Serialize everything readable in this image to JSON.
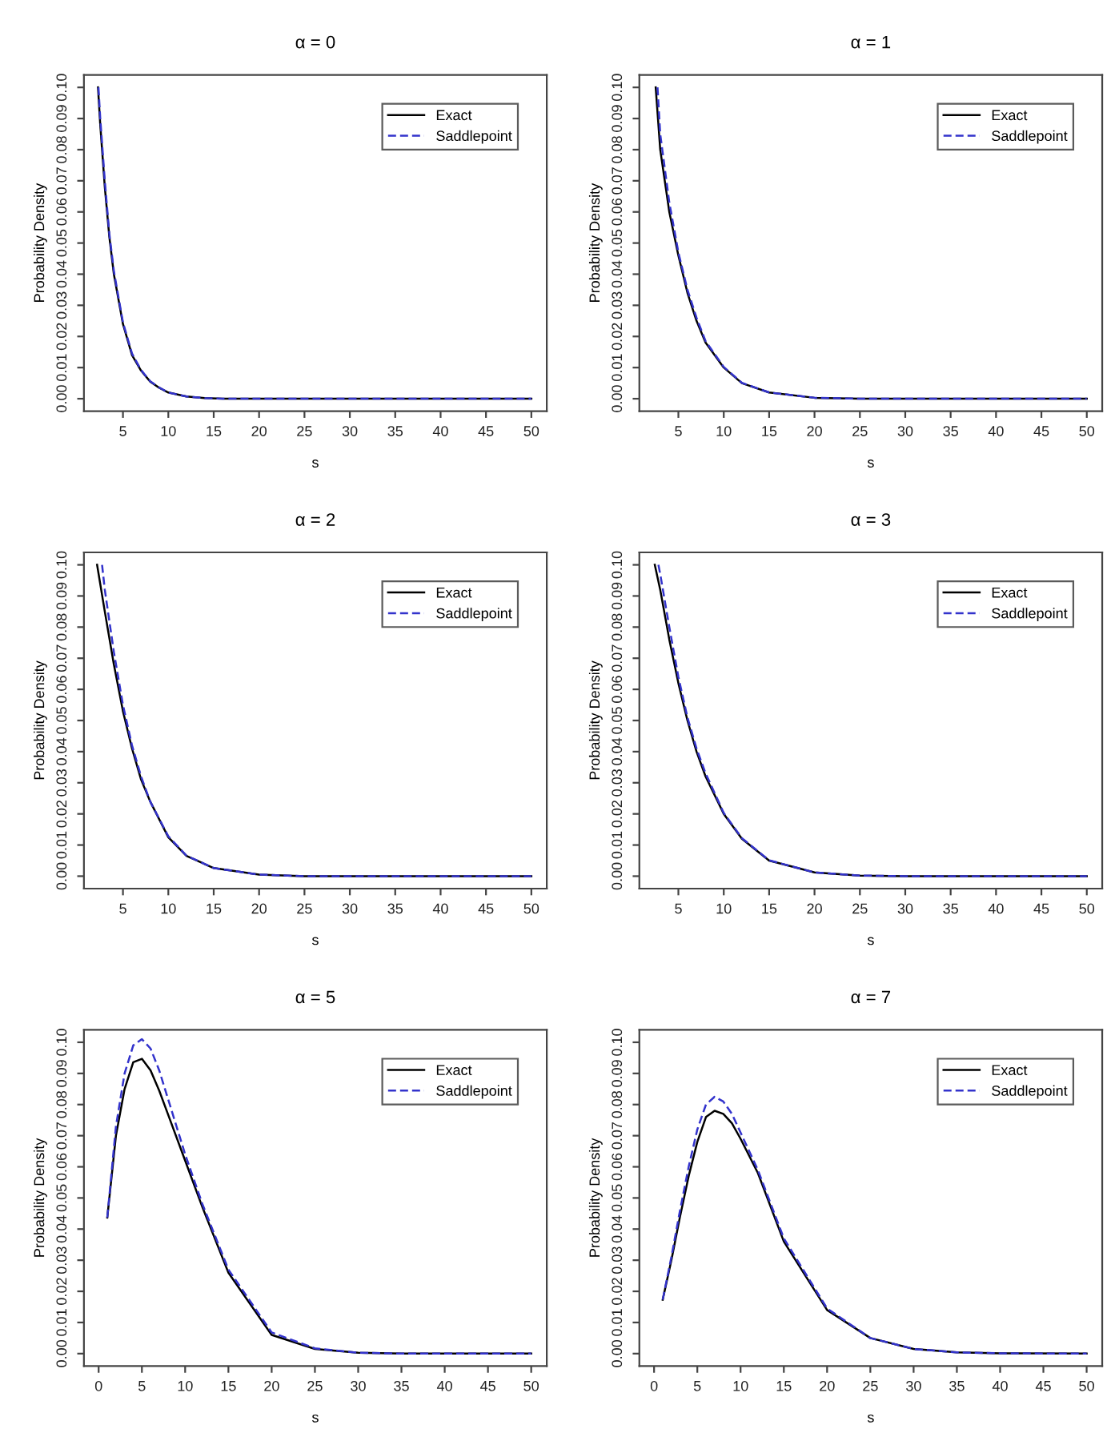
{
  "chart_data": [
    {
      "type": "line",
      "title": "α = 0",
      "xlabel": "s",
      "ylabel": "Probability Density",
      "xlim": [
        0.7,
        51.7
      ],
      "ylim": [
        -0.004,
        0.104
      ],
      "xticks": [
        5,
        10,
        15,
        20,
        25,
        30,
        35,
        40,
        45,
        50
      ],
      "yticks": [
        {
          "value": 0,
          "label": "0.00"
        },
        {
          "value": 0.01,
          "label": "0.01"
        },
        {
          "value": 0.02,
          "label": "0.02"
        },
        {
          "value": 0.03,
          "label": "0.03"
        },
        {
          "value": 0.04,
          "label": "0.04"
        },
        {
          "value": 0.05,
          "label": "0.05"
        },
        {
          "value": 0.06,
          "label": "0.06"
        },
        {
          "value": 0.07,
          "label": "0.07"
        },
        {
          "value": 0.08,
          "label": "0.08"
        },
        {
          "value": 0.09,
          "label": "0.09"
        },
        {
          "value": 0.1,
          "label": "0.10"
        }
      ],
      "legend": "top right",
      "grid": false,
      "series": [
        {
          "name": "Exact",
          "color": "#000000",
          "line_style": "solid",
          "x": [
            2.25,
            2.5,
            3,
            3.5,
            4,
            5,
            6,
            7,
            8,
            9,
            10,
            12,
            14,
            16,
            20,
            30,
            40,
            50
          ],
          "values": [
            0.1,
            0.088,
            0.068,
            0.052,
            0.04,
            0.024,
            0.014,
            0.009,
            0.0055,
            0.0035,
            0.002,
            0.0007,
            0.0002,
            0,
            0,
            0,
            0,
            0
          ]
        },
        {
          "name": "Saddlepoint",
          "color": "#3333cc",
          "line_style": "dashed",
          "x": [
            2.3,
            2.5,
            3,
            3.5,
            4,
            5,
            6,
            7,
            8,
            9,
            10,
            12,
            14,
            16,
            20,
            30,
            40,
            50
          ],
          "values": [
            0.1,
            0.09,
            0.07,
            0.053,
            0.041,
            0.0245,
            0.0145,
            0.0092,
            0.0056,
            0.0036,
            0.002,
            0.0007,
            0.0002,
            0,
            0,
            0,
            0,
            0
          ]
        }
      ]
    },
    {
      "type": "line",
      "title": "α = 1",
      "xlabel": "s",
      "ylabel": "Probability Density",
      "xlim": [
        0.7,
        51.7
      ],
      "ylim": [
        -0.004,
        0.104
      ],
      "xticks": [
        5,
        10,
        15,
        20,
        25,
        30,
        35,
        40,
        45,
        50
      ],
      "yticks": [
        {
          "value": 0,
          "label": "0.00"
        },
        {
          "value": 0.01,
          "label": "0.01"
        },
        {
          "value": 0.02,
          "label": "0.02"
        },
        {
          "value": 0.03,
          "label": "0.03"
        },
        {
          "value": 0.04,
          "label": "0.04"
        },
        {
          "value": 0.05,
          "label": "0.05"
        },
        {
          "value": 0.06,
          "label": "0.06"
        },
        {
          "value": 0.07,
          "label": "0.07"
        },
        {
          "value": 0.08,
          "label": "0.08"
        },
        {
          "value": 0.09,
          "label": "0.09"
        },
        {
          "value": 0.1,
          "label": "0.10"
        }
      ],
      "legend": "top right",
      "grid": false,
      "series": [
        {
          "name": "Exact",
          "color": "#000000",
          "line_style": "solid",
          "x": [
            2.5,
            3,
            4,
            5,
            6,
            7,
            8,
            10,
            12,
            15,
            20,
            25,
            50
          ],
          "values": [
            0.1,
            0.08,
            0.06,
            0.046,
            0.034,
            0.025,
            0.018,
            0.01,
            0.005,
            0.002,
            0.0003,
            0,
            0
          ]
        },
        {
          "name": "Saddlepoint",
          "color": "#3333cc",
          "line_style": "dashed",
          "x": [
            2.7,
            3,
            4,
            5,
            6,
            7,
            8,
            10,
            12,
            15,
            20,
            25,
            50
          ],
          "values": [
            0.1,
            0.085,
            0.063,
            0.047,
            0.035,
            0.026,
            0.0185,
            0.0102,
            0.0051,
            0.002,
            0.0003,
            0,
            0
          ]
        }
      ]
    },
    {
      "type": "line",
      "title": "α = 2",
      "xlabel": "s",
      "ylabel": "Probability Density",
      "xlim": [
        0.7,
        51.7
      ],
      "ylim": [
        -0.004,
        0.104
      ],
      "xticks": [
        5,
        10,
        15,
        20,
        25,
        30,
        35,
        40,
        45,
        50
      ],
      "yticks": [
        {
          "value": 0,
          "label": "0.00"
        },
        {
          "value": 0.01,
          "label": "0.01"
        },
        {
          "value": 0.02,
          "label": "0.02"
        },
        {
          "value": 0.03,
          "label": "0.03"
        },
        {
          "value": 0.04,
          "label": "0.04"
        },
        {
          "value": 0.05,
          "label": "0.05"
        },
        {
          "value": 0.06,
          "label": "0.06"
        },
        {
          "value": 0.07,
          "label": "0.07"
        },
        {
          "value": 0.08,
          "label": "0.08"
        },
        {
          "value": 0.09,
          "label": "0.09"
        },
        {
          "value": 0.1,
          "label": "0.10"
        }
      ],
      "legend": "top right",
      "grid": false,
      "series": [
        {
          "name": "Exact",
          "color": "#000000",
          "line_style": "solid",
          "x": [
            2.15,
            3,
            4,
            5,
            6,
            7,
            8,
            10,
            12,
            15,
            20,
            25,
            50
          ],
          "values": [
            0.1,
            0.085,
            0.068,
            0.053,
            0.041,
            0.031,
            0.024,
            0.0125,
            0.0065,
            0.0026,
            0.0005,
            0,
            0
          ]
        },
        {
          "name": "Saddlepoint",
          "color": "#3333cc",
          "line_style": "dashed",
          "x": [
            2.7,
            3,
            4,
            5,
            6,
            7,
            8,
            10,
            12,
            15,
            20,
            25,
            50
          ],
          "values": [
            0.1,
            0.092,
            0.072,
            0.055,
            0.042,
            0.032,
            0.024,
            0.0128,
            0.0066,
            0.0026,
            0.0005,
            0,
            0
          ]
        }
      ]
    },
    {
      "type": "line",
      "title": "α = 3",
      "xlabel": "s",
      "ylabel": "Probability Density",
      "xlim": [
        0.7,
        51.7
      ],
      "ylim": [
        -0.004,
        0.104
      ],
      "xticks": [
        5,
        10,
        15,
        20,
        25,
        30,
        35,
        40,
        45,
        50
      ],
      "yticks": [
        {
          "value": 0,
          "label": "0.00"
        },
        {
          "value": 0.01,
          "label": "0.01"
        },
        {
          "value": 0.02,
          "label": "0.02"
        },
        {
          "value": 0.03,
          "label": "0.03"
        },
        {
          "value": 0.04,
          "label": "0.04"
        },
        {
          "value": 0.05,
          "label": "0.05"
        },
        {
          "value": 0.06,
          "label": "0.06"
        },
        {
          "value": 0.07,
          "label": "0.07"
        },
        {
          "value": 0.08,
          "label": "0.08"
        },
        {
          "value": 0.09,
          "label": "0.09"
        },
        {
          "value": 0.1,
          "label": "0.10"
        }
      ],
      "legend": "top right",
      "grid": false,
      "series": [
        {
          "name": "Exact",
          "color": "#000000",
          "line_style": "solid",
          "x": [
            2.4,
            3,
            4,
            5,
            6,
            7,
            8,
            10,
            12,
            15,
            20,
            25,
            30,
            50
          ],
          "values": [
            0.1,
            0.092,
            0.076,
            0.062,
            0.05,
            0.04,
            0.032,
            0.02,
            0.012,
            0.005,
            0.0012,
            0.0002,
            0,
            0
          ]
        },
        {
          "name": "Saddlepoint",
          "color": "#3333cc",
          "line_style": "dashed",
          "x": [
            2.8,
            3,
            4,
            5,
            6,
            7,
            8,
            10,
            12,
            15,
            20,
            25,
            30,
            50
          ],
          "values": [
            0.1,
            0.097,
            0.08,
            0.064,
            0.051,
            0.041,
            0.033,
            0.0203,
            0.0122,
            0.0051,
            0.0012,
            0.0002,
            0,
            0
          ]
        }
      ]
    },
    {
      "type": "line",
      "title": "α = 5",
      "xlabel": "s",
      "ylabel": "Probability Density",
      "xlim": [
        -1.7,
        51.8
      ],
      "ylim": [
        -0.004,
        0.104
      ],
      "xticks": [
        0,
        5,
        10,
        15,
        20,
        25,
        30,
        35,
        40,
        45,
        50
      ],
      "yticks": [
        {
          "value": 0,
          "label": "0.00"
        },
        {
          "value": 0.01,
          "label": "0.01"
        },
        {
          "value": 0.02,
          "label": "0.02"
        },
        {
          "value": 0.03,
          "label": "0.03"
        },
        {
          "value": 0.04,
          "label": "0.04"
        },
        {
          "value": 0.05,
          "label": "0.05"
        },
        {
          "value": 0.06,
          "label": "0.06"
        },
        {
          "value": 0.07,
          "label": "0.07"
        },
        {
          "value": 0.08,
          "label": "0.08"
        },
        {
          "value": 0.09,
          "label": "0.09"
        },
        {
          "value": 0.1,
          "label": "0.10"
        }
      ],
      "legend": "top right",
      "grid": false,
      "series": [
        {
          "name": "Exact",
          "color": "#000000",
          "line_style": "solid",
          "x": [
            1,
            2,
            3,
            4,
            5,
            6,
            7,
            8,
            10,
            12,
            15,
            20,
            25,
            30,
            35,
            40,
            50
          ],
          "values": [
            0.0437,
            0.07,
            0.085,
            0.0936,
            0.0947,
            0.091,
            0.0845,
            0.077,
            0.062,
            0.047,
            0.026,
            0.006,
            0.0015,
            0.0003,
            0,
            0,
            0
          ]
        },
        {
          "name": "Saddlepoint",
          "color": "#3333cc",
          "line_style": "dashed",
          "x": [
            1,
            2,
            3,
            4,
            5,
            6,
            7,
            8,
            10,
            12,
            15,
            20,
            25,
            30,
            35,
            40,
            50
          ],
          "values": [
            0.0437,
            0.073,
            0.09,
            0.099,
            0.101,
            0.098,
            0.091,
            0.082,
            0.064,
            0.048,
            0.027,
            0.0068,
            0.0017,
            0.0003,
            0,
            0,
            0
          ]
        }
      ]
    },
    {
      "type": "line",
      "title": "α = 7",
      "xlabel": "s",
      "ylabel": "Probability Density",
      "xlim": [
        -1.7,
        51.8
      ],
      "ylim": [
        -0.004,
        0.104
      ],
      "xticks": [
        0,
        5,
        10,
        15,
        20,
        25,
        30,
        35,
        40,
        45,
        50
      ],
      "yticks": [
        {
          "value": 0,
          "label": "0.00"
        },
        {
          "value": 0.01,
          "label": "0.01"
        },
        {
          "value": 0.02,
          "label": "0.02"
        },
        {
          "value": 0.03,
          "label": "0.03"
        },
        {
          "value": 0.04,
          "label": "0.04"
        },
        {
          "value": 0.05,
          "label": "0.05"
        },
        {
          "value": 0.06,
          "label": "0.06"
        },
        {
          "value": 0.07,
          "label": "0.07"
        },
        {
          "value": 0.08,
          "label": "0.08"
        },
        {
          "value": 0.09,
          "label": "0.09"
        },
        {
          "value": 0.1,
          "label": "0.10"
        }
      ],
      "legend": "top right",
      "grid": false,
      "series": [
        {
          "name": "Exact",
          "color": "#000000",
          "line_style": "solid",
          "x": [
            1,
            2,
            3,
            4,
            5,
            6,
            7,
            8,
            9,
            10,
            12,
            15,
            20,
            25,
            30,
            35,
            40,
            50
          ],
          "values": [
            0.0173,
            0.03,
            0.044,
            0.057,
            0.068,
            0.076,
            0.078,
            0.077,
            0.074,
            0.069,
            0.058,
            0.036,
            0.014,
            0.005,
            0.0015,
            0.0004,
            0.0001,
            0
          ]
        },
        {
          "name": "Saddlepoint",
          "color": "#3333cc",
          "line_style": "dashed",
          "x": [
            1,
            2,
            3,
            4,
            5,
            6,
            7,
            8,
            9,
            10,
            12,
            15,
            20,
            25,
            30,
            35,
            40,
            50
          ],
          "values": [
            0.0173,
            0.031,
            0.046,
            0.06,
            0.072,
            0.08,
            0.0825,
            0.081,
            0.077,
            0.071,
            0.059,
            0.037,
            0.0145,
            0.005,
            0.0015,
            0.0004,
            0.0001,
            0
          ]
        }
      ]
    }
  ]
}
